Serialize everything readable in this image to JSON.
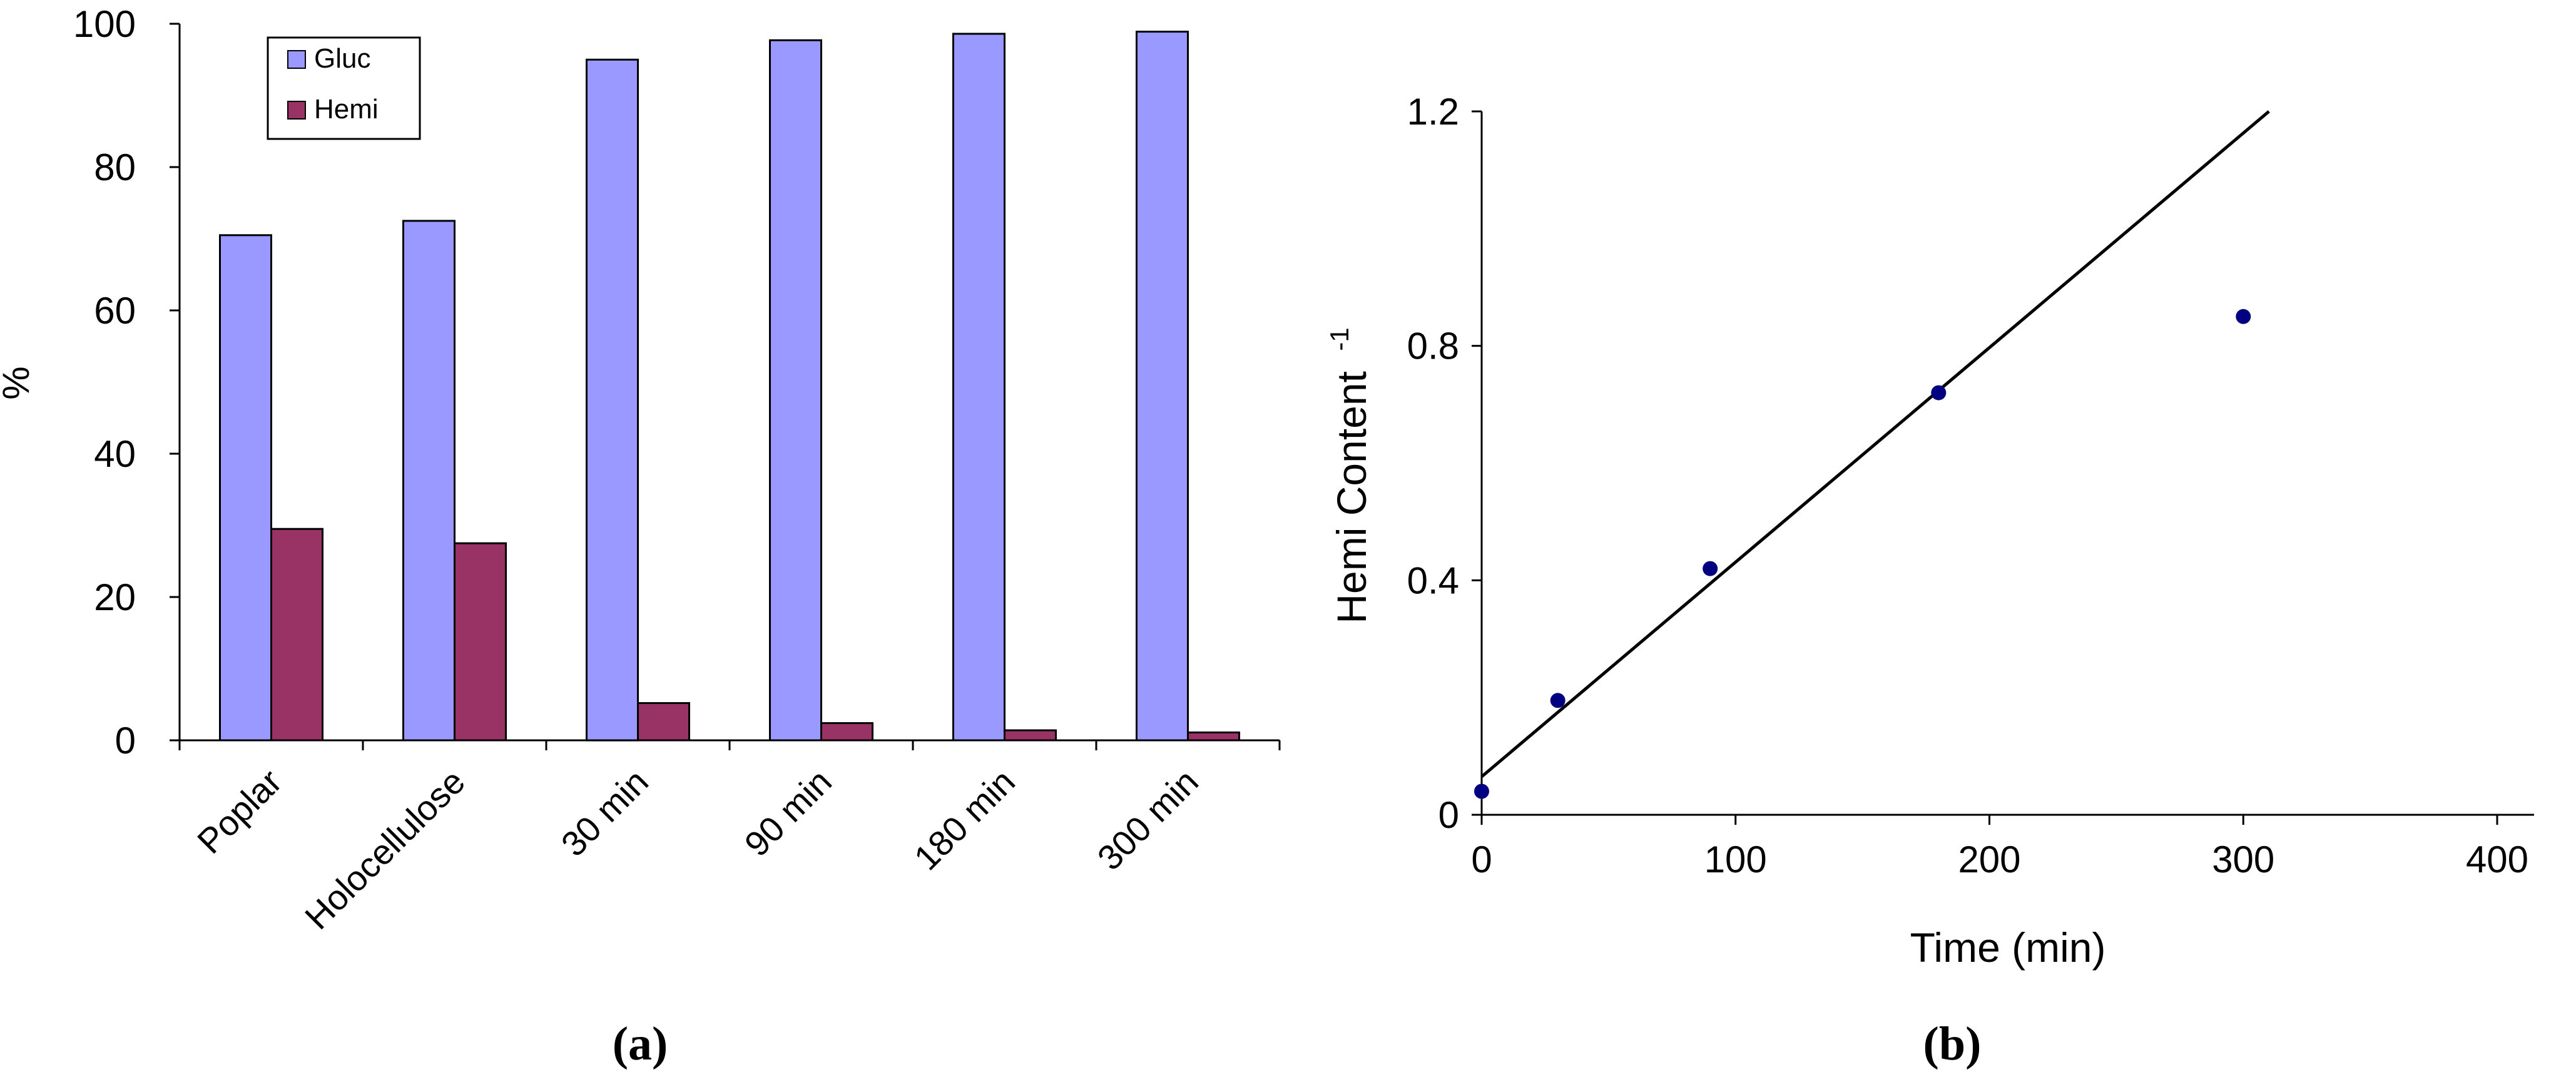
{
  "chart_data": [
    {
      "type": "bar",
      "panel_label": "(a)",
      "ylabel": "%",
      "ylim": [
        0,
        100
      ],
      "yticks": [
        0,
        20,
        40,
        60,
        80,
        100
      ],
      "categories": [
        "Poplar",
        "Holocellulose",
        "30 min",
        "90 min",
        "180 min",
        "300 min"
      ],
      "series": [
        {
          "name": "Gluc",
          "color": "#9999ff",
          "values": [
            70.5,
            72.5,
            95.0,
            97.7,
            98.6,
            98.9
          ]
        },
        {
          "name": "Hemi",
          "color": "#993366",
          "values": [
            29.5,
            27.5,
            5.2,
            2.4,
            1.4,
            1.1
          ]
        }
      ],
      "legend": "top-left",
      "grid": false
    },
    {
      "type": "scatter",
      "panel_label": "(b)",
      "xlabel": "Time (min)",
      "ylabel": "Hemi Content",
      "ylabel_superscript": "-1",
      "xlim": [
        0,
        400
      ],
      "ylim": [
        0,
        1.2
      ],
      "xticks": [
        "0",
        "100",
        "200",
        "300",
        "400"
      ],
      "yticks": [
        "0",
        "0.4",
        "0.8",
        "1.2"
      ],
      "points": {
        "x": [
          0,
          30,
          90,
          180,
          300
        ],
        "y": [
          0.04,
          0.195,
          0.42,
          0.72,
          0.85
        ],
        "color": "#000080"
      },
      "fit_line": {
        "intercept": 0.065,
        "slope": 0.00366
      },
      "grid": false
    }
  ]
}
